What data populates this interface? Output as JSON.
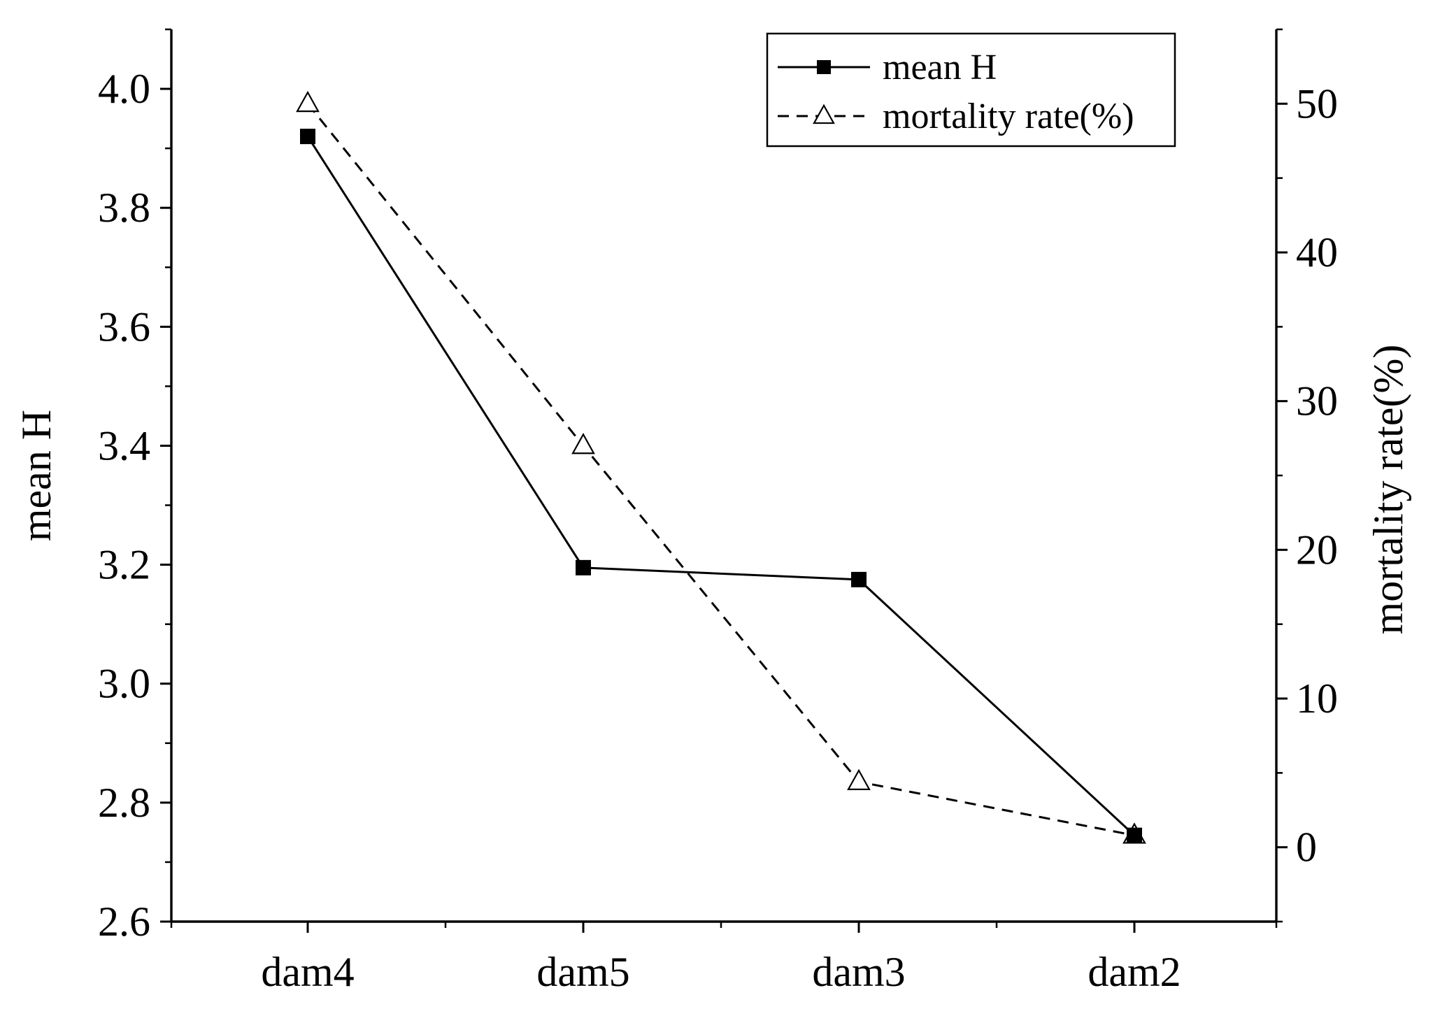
{
  "chart_data": {
    "type": "line",
    "categories": [
      "dam4",
      "dam5",
      "dam3",
      "dam2"
    ],
    "series": [
      {
        "name": "mean H",
        "axis": "left",
        "values": [
          3.92,
          3.195,
          3.175,
          2.745
        ],
        "marker": "filled-square",
        "line_style": "solid"
      },
      {
        "name": "mortality rate(%)",
        "axis": "right",
        "values": [
          50,
          27,
          4.4,
          0.8
        ],
        "marker": "open-triangle",
        "line_style": "dashed"
      }
    ],
    "ylabel": "mean H",
    "y2label": "mortality rate(%)",
    "ylim": [
      2.6,
      4.1
    ],
    "y2lim": [
      -5,
      55
    ],
    "yticks": [
      "2.6",
      "2.8",
      "3.0",
      "3.2",
      "3.4",
      "3.6",
      "3.8",
      "4.0"
    ],
    "y2ticks": [
      "0",
      "10",
      "20",
      "30",
      "40",
      "50"
    ],
    "grid": false,
    "legend": "top-right",
    "colors": {
      "line": "#000000",
      "background": "#ffffff"
    }
  }
}
